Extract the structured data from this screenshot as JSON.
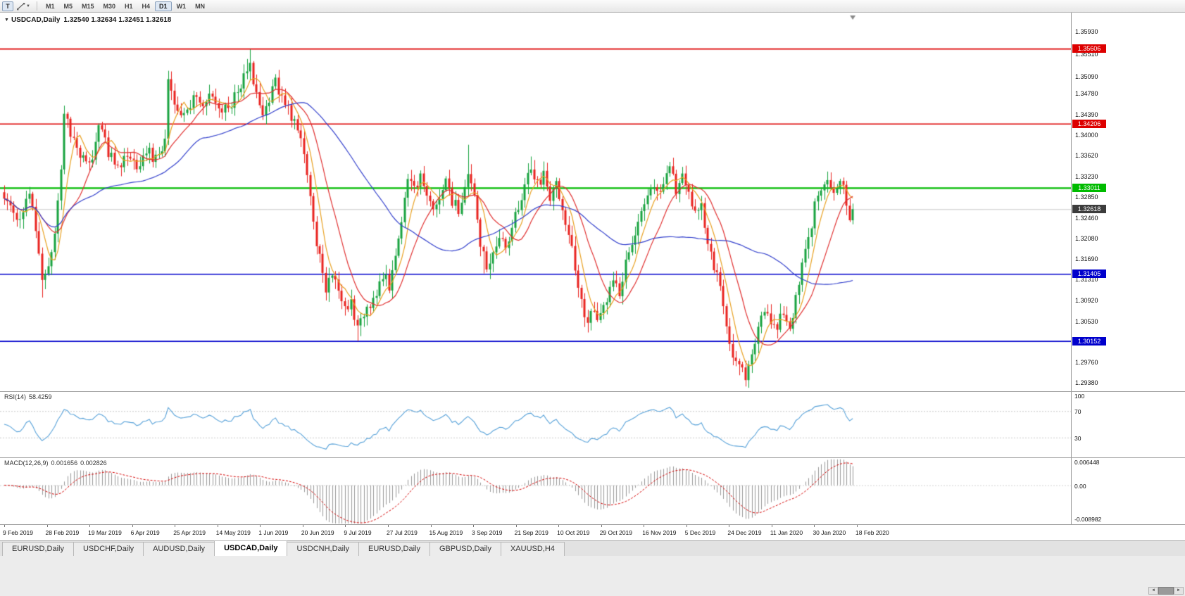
{
  "toolbar": {
    "pointer_tool_label": "T",
    "timeframes": [
      "M1",
      "M5",
      "M15",
      "M30",
      "H1",
      "H4",
      "D1",
      "W1",
      "MN"
    ],
    "active_timeframe": "D1"
  },
  "chart": {
    "symbol": "USDCAD,Daily",
    "ohlc_text": "1.32540 1.32634 1.32451 1.32618",
    "open": "1.32540",
    "high": "1.32634",
    "low": "1.32451",
    "close": "1.32618",
    "price_axis_ticks": [
      "1.35930",
      "1.35510",
      "1.35090",
      "1.34780",
      "1.34390",
      "1.34000",
      "1.33620",
      "1.33230",
      "1.32850",
      "1.32460",
      "1.32080",
      "1.31690",
      "1.31310",
      "1.30920",
      "1.30530",
      "1.29760",
      "1.29380"
    ],
    "levels": [
      {
        "price": 1.35606,
        "label": "1.35606",
        "color": "#dd0000",
        "lw": 1.6,
        "type": "resistance"
      },
      {
        "price": 1.34206,
        "label": "1.34206",
        "color": "#dd0000",
        "lw": 1.6,
        "type": "resistance"
      },
      {
        "price": 1.33011,
        "label": "1.33011",
        "color": "#00bb00",
        "lw": 2.2,
        "type": "resistance"
      },
      {
        "price": 1.31405,
        "label": "1.31405",
        "color": "#0000cc",
        "lw": 1.6,
        "type": "support"
      },
      {
        "price": 1.30152,
        "label": "1.30152",
        "color": "#0000cc",
        "lw": 1.6,
        "type": "support"
      }
    ],
    "current_price": {
      "value": 1.32618,
      "label": "1.32618",
      "badge_color": "#3c3c3c",
      "line_color": "#c9c9c9"
    },
    "time_axis_labels": [
      "9 Feb 2019",
      "28 Feb 2019",
      "19 Mar 2019",
      "6 Apr 2019",
      "25 Apr 2019",
      "14 May 2019",
      "1 Jun 2019",
      "20 Jun 2019",
      "9 Jul 2019",
      "27 Jul 2019",
      "15 Aug 2019",
      "3 Sep 2019",
      "21 Sep 2019",
      "10 Oct 2019",
      "29 Oct 2019",
      "16 Nov 2019",
      "5 Dec 2019",
      "24 Dec 2019",
      "11 Jan 2020",
      "30 Jan 2020",
      "18 Feb 2020"
    ],
    "candle_up_color": "#17a33f",
    "candle_down_color": "#e8231f",
    "moving_averages": [
      {
        "period": 6,
        "color": "#e8a020",
        "name": "fast-ma"
      },
      {
        "period": 14,
        "color": "#e03030",
        "name": "medium-ma"
      },
      {
        "period": 45,
        "color": "#3340cc",
        "name": "slow-ma"
      }
    ]
  },
  "chart_data": {
    "type": "candlestick",
    "symbol": "USDCAD",
    "timeframe": "Daily",
    "x_range": [
      "9 Feb 2019",
      "18 Feb 2020"
    ],
    "price_axis_range": [
      1.293,
      1.36284
    ],
    "candle_count": 270,
    "price_anchors": [
      [
        0,
        1.329
      ],
      [
        2,
        1.3262
      ],
      [
        4,
        1.3242
      ],
      [
        6,
        1.3268
      ],
      [
        8,
        1.3302
      ],
      [
        10,
        1.3225
      ],
      [
        12,
        1.3118
      ],
      [
        14,
        1.3152
      ],
      [
        16,
        1.3225
      ],
      [
        18,
        1.333
      ],
      [
        19,
        1.343
      ],
      [
        21,
        1.3408
      ],
      [
        24,
        1.3362
      ],
      [
        27,
        1.334
      ],
      [
        30,
        1.3418
      ],
      [
        33,
        1.3368
      ],
      [
        36,
        1.3345
      ],
      [
        39,
        1.3362
      ],
      [
        42,
        1.3338
      ],
      [
        45,
        1.3375
      ],
      [
        48,
        1.3355
      ],
      [
        51,
        1.3395
      ],
      [
        52,
        1.3495
      ],
      [
        54,
        1.3458
      ],
      [
        57,
        1.3432
      ],
      [
        60,
        1.3468
      ],
      [
        63,
        1.3448
      ],
      [
        66,
        1.3478
      ],
      [
        69,
        1.3445
      ],
      [
        72,
        1.3462
      ],
      [
        75,
        1.3495
      ],
      [
        78,
        1.3528
      ],
      [
        80,
        1.3478
      ],
      [
        82,
        1.3445
      ],
      [
        84,
        1.3472
      ],
      [
        86,
        1.3502
      ],
      [
        88,
        1.3468
      ],
      [
        91,
        1.3438
      ],
      [
        94,
        1.3388
      ],
      [
        96,
        1.3328
      ],
      [
        98,
        1.3238
      ],
      [
        100,
        1.3168
      ],
      [
        102,
        1.3118
      ],
      [
        104,
        1.3145
      ],
      [
        106,
        1.3098
      ],
      [
        108,
        1.3072
      ],
      [
        110,
        1.3088
      ],
      [
        112,
        1.3038
      ],
      [
        114,
        1.3058
      ],
      [
        116,
        1.3088
      ],
      [
        118,
        1.3108
      ],
      [
        120,
        1.3138
      ],
      [
        122,
        1.3118
      ],
      [
        124,
        1.3168
      ],
      [
        126,
        1.3248
      ],
      [
        128,
        1.3318
      ],
      [
        130,
        1.3298
      ],
      [
        132,
        1.3328
      ],
      [
        134,
        1.3288
      ],
      [
        136,
        1.3258
      ],
      [
        138,
        1.3288
      ],
      [
        140,
        1.3318
      ],
      [
        142,
        1.3278
      ],
      [
        144,
        1.3258
      ],
      [
        146,
        1.3298
      ],
      [
        147,
        1.3338
      ],
      [
        149,
        1.3278
      ],
      [
        151,
        1.3198
      ],
      [
        153,
        1.3152
      ],
      [
        155,
        1.3178
      ],
      [
        157,
        1.3218
      ],
      [
        159,
        1.3188
      ],
      [
        161,
        1.3228
      ],
      [
        163,
        1.3268
      ],
      [
        165,
        1.3298
      ],
      [
        167,
        1.3338
      ],
      [
        169,
        1.3308
      ],
      [
        171,
        1.3328
      ],
      [
        173,
        1.3288
      ],
      [
        175,
        1.3308
      ],
      [
        177,
        1.3268
      ],
      [
        179,
        1.3218
      ],
      [
        181,
        1.3148
      ],
      [
        183,
        1.3088
      ],
      [
        185,
        1.3055
      ],
      [
        187,
        1.3075
      ],
      [
        189,
        1.3058
      ],
      [
        191,
        1.3088
      ],
      [
        193,
        1.3128
      ],
      [
        195,
        1.3108
      ],
      [
        197,
        1.3158
      ],
      [
        199,
        1.3198
      ],
      [
        201,
        1.3248
      ],
      [
        203,
        1.3278
      ],
      [
        205,
        1.3308
      ],
      [
        207,
        1.3288
      ],
      [
        209,
        1.3318
      ],
      [
        211,
        1.3338
      ],
      [
        213,
        1.3298
      ],
      [
        215,
        1.3328
      ],
      [
        217,
        1.3288
      ],
      [
        219,
        1.3248
      ],
      [
        221,
        1.3268
      ],
      [
        223,
        1.3208
      ],
      [
        225,
        1.3158
      ],
      [
        227,
        1.3118
      ],
      [
        229,
        1.3048
      ],
      [
        231,
        1.2988
      ],
      [
        233,
        1.2962
      ],
      [
        235,
        1.2948
      ],
      [
        237,
        1.2998
      ],
      [
        239,
        1.3038
      ],
      [
        241,
        1.3068
      ],
      [
        243,
        1.3048
      ],
      [
        245,
        1.3028
      ],
      [
        246,
        1.3078
      ],
      [
        248,
        1.3058
      ],
      [
        249,
        1.3038
      ],
      [
        251,
        1.3098
      ],
      [
        253,
        1.3158
      ],
      [
        255,
        1.3208
      ],
      [
        257,
        1.3268
      ],
      [
        259,
        1.3308
      ],
      [
        261,
        1.3328
      ],
      [
        263,
        1.3298
      ],
      [
        265,
        1.3318
      ],
      [
        267,
        1.3278
      ],
      [
        268,
        1.3252
      ],
      [
        269,
        1.32618
      ]
    ],
    "spikes": [
      {
        "i": 12,
        "low": 1.3097
      },
      {
        "i": 19,
        "high": 1.3455
      },
      {
        "i": 52,
        "high": 1.352
      },
      {
        "i": 77,
        "high": 1.3542
      },
      {
        "i": 78,
        "high": 1.356
      },
      {
        "i": 79,
        "high": 1.3535
      },
      {
        "i": 112,
        "low": 1.3016
      },
      {
        "i": 113,
        "low": 1.3025
      },
      {
        "i": 147,
        "high": 1.3382
      },
      {
        "i": 152,
        "low": 1.3142
      },
      {
        "i": 167,
        "high": 1.336
      },
      {
        "i": 184,
        "low": 1.3042
      },
      {
        "i": 233,
        "low": 1.2952
      },
      {
        "i": 235,
        "low": 1.294
      },
      {
        "i": 261,
        "high": 1.3332
      }
    ]
  },
  "rsi": {
    "name": "RSI(14)",
    "value": "58.4259",
    "axis_ticks": [
      {
        "label": "100",
        "v": 100
      },
      {
        "label": "70",
        "v": 70
      },
      {
        "label": "30",
        "v": 30
      }
    ],
    "guide_levels": [
      70,
      30
    ],
    "line_color": "#55a0d8",
    "period": 14
  },
  "macd": {
    "name": "MACD(12,26,9)",
    "main_value": "0.001656",
    "signal_value": "0.002826",
    "axis_ticks": [
      {
        "label": "0.006448",
        "v": 0.006448
      },
      {
        "label": "0.00",
        "v": 0
      },
      {
        "label": "-0.008982",
        "v": -0.008982
      }
    ],
    "range": [
      -0.008982,
      0.006448
    ],
    "histogram_color": "#999999",
    "signal_color": "#d40000"
  },
  "tabs": [
    {
      "label": "EURUSD,Daily",
      "active": false
    },
    {
      "label": "USDCHF,Daily",
      "active": false
    },
    {
      "label": "AUDUSD,Daily",
      "active": false
    },
    {
      "label": "USDCAD,Daily",
      "active": true
    },
    {
      "label": "USDCNH,Daily",
      "active": false
    },
    {
      "label": "EURUSD,Daily",
      "active": false
    },
    {
      "label": "GBPUSD,Daily",
      "active": false
    },
    {
      "label": "XAUUSD,H4",
      "active": false
    }
  ]
}
